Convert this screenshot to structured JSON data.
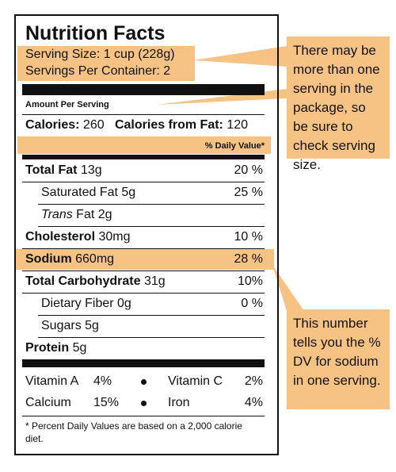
{
  "header": {
    "title": "Nutrition Facts",
    "serving_size": "Serving Size: 1 cup (228g)",
    "servings_per_container": "Servings Per Container: 2"
  },
  "amount_per_serving": "Amount Per Serving",
  "calories": {
    "label": "Calories:",
    "value": "260",
    "fat_label": "Calories from Fat:",
    "fat_value": "120"
  },
  "daily_value_header": "% Daily Value*",
  "nutrients": [
    {
      "name": "Total Fat",
      "amount": "13g",
      "dv": "20 %",
      "bold": true
    },
    {
      "name": "Saturated Fat",
      "amount": "5g",
      "dv": "25 %",
      "indent": true
    },
    {
      "italic": "Trans",
      "name": "Fat",
      "amount": "2g",
      "indent": true
    },
    {
      "name": "Cholesterol",
      "amount": "30mg",
      "dv": "10 %",
      "bold": true
    },
    {
      "name": "Sodium",
      "amount": "660mg",
      "dv": "28 %",
      "bold": true,
      "highlight": true
    },
    {
      "name": "Total Carbohydrate",
      "amount": "31g",
      "dv": "10%",
      "bold": true
    },
    {
      "name": "Dietary Fiber",
      "amount": "0g",
      "dv": "0 %",
      "indent": true
    },
    {
      "name": "Sugars",
      "amount": "5g",
      "indent": true
    },
    {
      "name": "Protein",
      "amount": "5g",
      "bold": true
    }
  ],
  "vitamins": [
    [
      {
        "name": "Vitamin A",
        "dv": "4%"
      },
      {
        "name": "Vitamin C",
        "dv": "2%"
      }
    ],
    [
      {
        "name": "Calcium",
        "dv": "15%"
      },
      {
        "name": "Iron",
        "dv": "4%"
      }
    ]
  ],
  "footnote": "* Percent Daily Values are based on a 2,000 calorie diet.",
  "callouts": [
    {
      "text": "There may be more than one serving in the package, so be sure to check serving size."
    },
    {
      "text": "This number tells you the % DV for sodium in one serving."
    }
  ]
}
